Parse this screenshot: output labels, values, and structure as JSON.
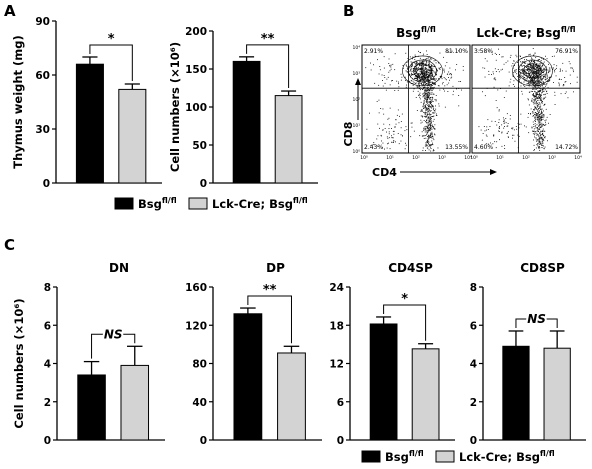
{
  "panels": {
    "a": "A",
    "b": "B",
    "c": "C"
  },
  "colors": {
    "wt": "#000000",
    "ko": "#d3d3d3",
    "error": "#000000"
  },
  "legend": {
    "series1": {
      "base": "Bsg",
      "sup": "fl/fl",
      "color": "#000000"
    },
    "series2": {
      "base": "Lck-Cre; Bsg",
      "sup": "fl/fl",
      "color": "#d3d3d3"
    }
  },
  "chart_data": [
    {
      "type": "bar",
      "panel": "A",
      "title": "",
      "categories": [
        "Bsg fl/fl",
        "Lck-Cre; Bsg fl/fl"
      ],
      "values": [
        66,
        52
      ],
      "errors": [
        4,
        3
      ],
      "ylabel": "Thymus weight (mg)",
      "ylim": [
        0,
        90
      ],
      "yticks": [
        0,
        30,
        60,
        90
      ],
      "significance": "*"
    },
    {
      "type": "bar",
      "panel": "A",
      "title": "",
      "categories": [
        "Bsg fl/fl",
        "Lck-Cre; Bsg fl/fl"
      ],
      "values": [
        160,
        115
      ],
      "errors": [
        6,
        6
      ],
      "ylabel": "Cell numbers (×10⁶)",
      "ylim": [
        0,
        200
      ],
      "yticks": [
        0,
        50,
        100,
        150,
        200
      ],
      "significance": "**"
    },
    {
      "type": "bar",
      "panel": "C",
      "title": "DN",
      "categories": [
        "Bsg fl/fl",
        "Lck-Cre; Bsg fl/fl"
      ],
      "values": [
        3.4,
        3.9
      ],
      "errors": [
        0.7,
        1.0
      ],
      "ylabel": "Cell numbers (×10⁶)",
      "ylim": [
        0,
        8
      ],
      "yticks": [
        0,
        2,
        4,
        6,
        8
      ],
      "significance": "NS"
    },
    {
      "type": "bar",
      "panel": "C",
      "title": "DP",
      "categories": [
        "Bsg fl/fl",
        "Lck-Cre; Bsg fl/fl"
      ],
      "values": [
        132,
        91
      ],
      "errors": [
        6,
        7
      ],
      "ylabel": "",
      "ylim": [
        0,
        160
      ],
      "yticks": [
        0,
        40,
        80,
        120,
        160
      ],
      "significance": "**"
    },
    {
      "type": "bar",
      "panel": "C",
      "title": "CD4SP",
      "categories": [
        "Bsg fl/fl",
        "Lck-Cre; Bsg fl/fl"
      ],
      "values": [
        18.2,
        14.3
      ],
      "errors": [
        1.1,
        0.8
      ],
      "ylabel": "",
      "ylim": [
        0,
        24
      ],
      "yticks": [
        0,
        6,
        12,
        18,
        24
      ],
      "significance": "*"
    },
    {
      "type": "bar",
      "panel": "C",
      "title": "CD8SP",
      "categories": [
        "Bsg fl/fl",
        "Lck-Cre; Bsg fl/fl"
      ],
      "values": [
        4.9,
        4.8
      ],
      "errors": [
        0.8,
        0.9
      ],
      "ylabel": "",
      "ylim": [
        0,
        8
      ],
      "yticks": [
        0,
        2,
        4,
        6,
        8
      ],
      "significance": "NS"
    }
  ],
  "flow": {
    "x_axis_label": "CD4",
    "y_axis_label": "CD8",
    "ticks": [
      "10⁰",
      "10¹",
      "10²",
      "10³",
      "10⁴"
    ],
    "plots": [
      {
        "title_base": "Bsg",
        "title_sup": "fl/fl",
        "quadrants": {
          "top_left": "2.91%",
          "top_right": "81.10%",
          "bottom_left": "2.43%",
          "bottom_right": "13.55%"
        }
      },
      {
        "title_base": "Lck-Cre; Bsg",
        "title_sup": "fl/fl",
        "quadrants": {
          "top_left": "3.58%",
          "top_right": "76.91%",
          "bottom_left": "4.60%",
          "bottom_right": "14.72%"
        }
      }
    ]
  }
}
